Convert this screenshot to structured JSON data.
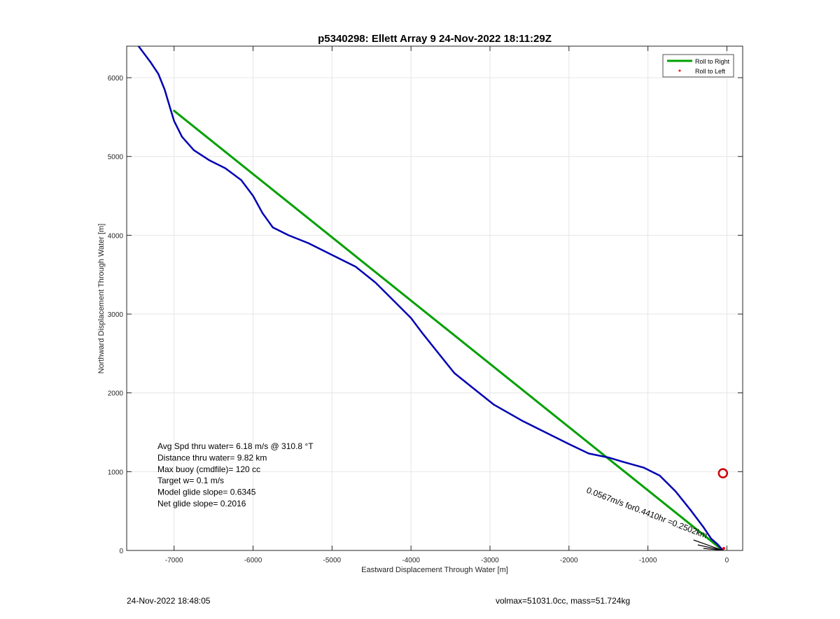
{
  "chart_data": {
    "type": "line",
    "title": "p5340298: Ellett Array 9 24-Nov-2022 18:11:29Z",
    "xlabel": "Eastward Displacement Through Water [m]",
    "ylabel": "Northward Displacement Through Water [m]",
    "xlim": [
      -7600,
      200
    ],
    "ylim": [
      0,
      6400
    ],
    "xticks": [
      -7000,
      -6000,
      -5000,
      -4000,
      -3000,
      -2000,
      -1000,
      0
    ],
    "yticks": [
      0,
      1000,
      2000,
      3000,
      4000,
      5000,
      6000
    ],
    "grid": true,
    "legend": {
      "placement": "top-right",
      "entries": [
        "Roll to Right",
        "Roll to Left"
      ]
    },
    "series": [
      {
        "name": "Roll to Right",
        "color": "#00a000",
        "points": [
          [
            -7000,
            5580
          ],
          [
            -50,
            0
          ]
        ]
      },
      {
        "name": "",
        "color": "#0000b4",
        "points": [
          [
            -7450,
            6400
          ],
          [
            -7300,
            6200
          ],
          [
            -7200,
            6050
          ],
          [
            -7120,
            5850
          ],
          [
            -7060,
            5650
          ],
          [
            -7000,
            5450
          ],
          [
            -6900,
            5250
          ],
          [
            -6750,
            5080
          ],
          [
            -6550,
            4950
          ],
          [
            -6350,
            4850
          ],
          [
            -6150,
            4700
          ],
          [
            -6000,
            4500
          ],
          [
            -5880,
            4280
          ],
          [
            -5750,
            4100
          ],
          [
            -5550,
            4000
          ],
          [
            -5300,
            3900
          ],
          [
            -5000,
            3750
          ],
          [
            -4700,
            3600
          ],
          [
            -4450,
            3400
          ],
          [
            -4200,
            3150
          ],
          [
            -4000,
            2950
          ],
          [
            -3850,
            2750
          ],
          [
            -3650,
            2500
          ],
          [
            -3450,
            2250
          ],
          [
            -3200,
            2050
          ],
          [
            -2950,
            1850
          ],
          [
            -2600,
            1650
          ],
          [
            -2300,
            1500
          ],
          [
            -2000,
            1350
          ],
          [
            -1750,
            1230
          ],
          [
            -1500,
            1180
          ],
          [
            -1300,
            1120
          ],
          [
            -1050,
            1050
          ],
          [
            -850,
            950
          ],
          [
            -650,
            750
          ],
          [
            -450,
            500
          ],
          [
            -300,
            300
          ],
          [
            -200,
            150
          ],
          [
            -120,
            80
          ],
          [
            -50,
            0
          ]
        ]
      }
    ],
    "markers": [
      {
        "name": "Roll to Left",
        "color": "#ff0000",
        "x": -40,
        "y": 0
      },
      {
        "name": "",
        "color": "#cc0000",
        "x": -50,
        "y": 980,
        "shape": "circle"
      }
    ],
    "annotation_lines": [
      "Avg Spd thru water=  6.18 m/s @ 310.8 °T",
      "Distance thru water=  9.82 km",
      "Max buoy (cmdfile)= 120 cc",
      "Target w= 0.1 m/s",
      "Model glide slope= 0.6345",
      "Net glide slope= 0.2016"
    ],
    "rotated_annotation": "0.0567m/s for0.4410hr =0.2502km",
    "footer_left": "24-Nov-2022 18:48:05",
    "footer_right": "volmax=51031.0cc, mass=51.724kg"
  }
}
